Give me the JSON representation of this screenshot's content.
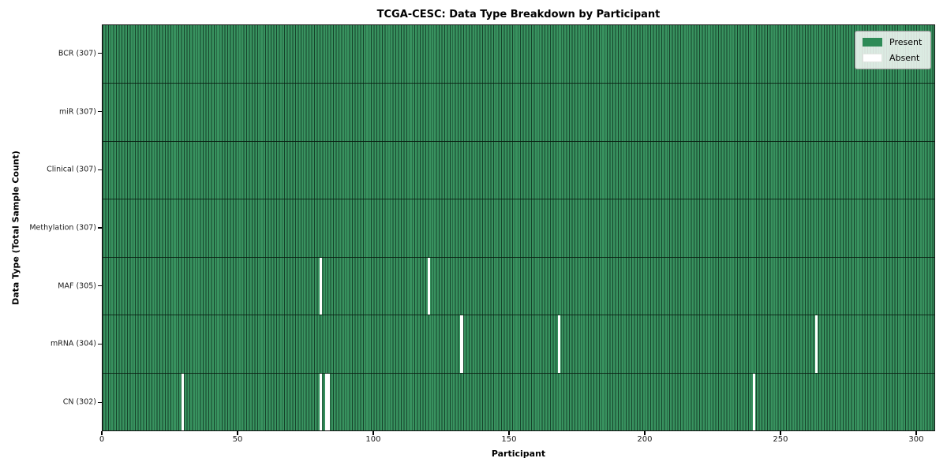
{
  "chart_data": {
    "type": "heatmap",
    "title": "TCGA-CESC: Data Type Breakdown by Participant",
    "xlabel": "Participant",
    "ylabel": "Data Type (Total Sample Count)",
    "n_participants": 307,
    "x_ticks": [
      0,
      50,
      100,
      150,
      200,
      250,
      300
    ],
    "grid": false,
    "legend_position": "upper right",
    "rows": [
      {
        "label": "BCR (307)",
        "data_type": "BCR",
        "present_count": 307,
        "absent_participants": []
      },
      {
        "label": "miR (307)",
        "data_type": "miR",
        "present_count": 307,
        "absent_participants": []
      },
      {
        "label": "Clinical (307)",
        "data_type": "Clinical",
        "present_count": 307,
        "absent_participants": []
      },
      {
        "label": "Methylation (307)",
        "data_type": "Methylation",
        "present_count": 307,
        "absent_participants": []
      },
      {
        "label": "MAF (305)",
        "data_type": "MAF",
        "present_count": 305,
        "absent_participants": [
          80,
          120
        ]
      },
      {
        "label": "mRNA (304)",
        "data_type": "mRNA",
        "present_count": 304,
        "absent_participants": [
          132,
          168,
          263
        ]
      },
      {
        "label": "CN (302)",
        "data_type": "CN",
        "present_count": 302,
        "absent_participants": [
          29,
          80,
          82,
          83,
          240
        ]
      }
    ],
    "legend": [
      {
        "label": "Present",
        "color": "#2e8b57"
      },
      {
        "label": "Absent",
        "color": "#ffffff"
      }
    ],
    "colors": {
      "present_fill": "#38925f",
      "present_edge": "#16432b",
      "absent_fill": "#ffffff",
      "spine": "#141414"
    }
  }
}
